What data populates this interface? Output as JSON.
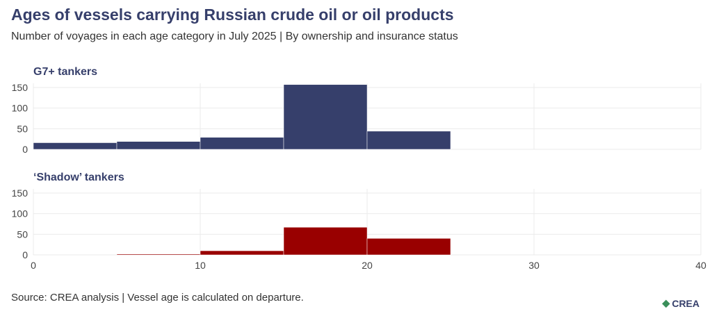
{
  "title": "Ages of vessels carrying Russian crude oil or oil products",
  "subtitle": "Number of voyages in each age category in July 2025 | By ownership and insurance status",
  "source": "Source: CREA analysis | Vessel age is calculated on departure.",
  "logo": "CREA",
  "chart_data": [
    {
      "type": "bar",
      "title": "G7+ tankers",
      "bins": [
        [
          0,
          5
        ],
        [
          5,
          10
        ],
        [
          10,
          15
        ],
        [
          15,
          20
        ],
        [
          20,
          25
        ]
      ],
      "values": [
        16,
        19,
        29,
        157,
        44
      ],
      "color": "#363f6b",
      "xlim": [
        0,
        40
      ],
      "ylim": [
        0,
        160
      ],
      "xticks": [
        0,
        10,
        20,
        30,
        40
      ],
      "yticks": [
        0,
        50,
        100,
        150
      ],
      "grid": true
    },
    {
      "type": "bar",
      "title": "‘Shadow’ tankers",
      "bins": [
        [
          0,
          5
        ],
        [
          5,
          10
        ],
        [
          10,
          15
        ],
        [
          15,
          20
        ],
        [
          20,
          25
        ]
      ],
      "values": [
        0,
        2,
        10,
        67,
        40
      ],
      "color": "#990000",
      "xlim": [
        0,
        40
      ],
      "ylim": [
        0,
        160
      ],
      "xticks": [
        0,
        10,
        20,
        30,
        40
      ],
      "yticks": [
        0,
        50,
        100,
        150
      ],
      "grid": true
    }
  ]
}
